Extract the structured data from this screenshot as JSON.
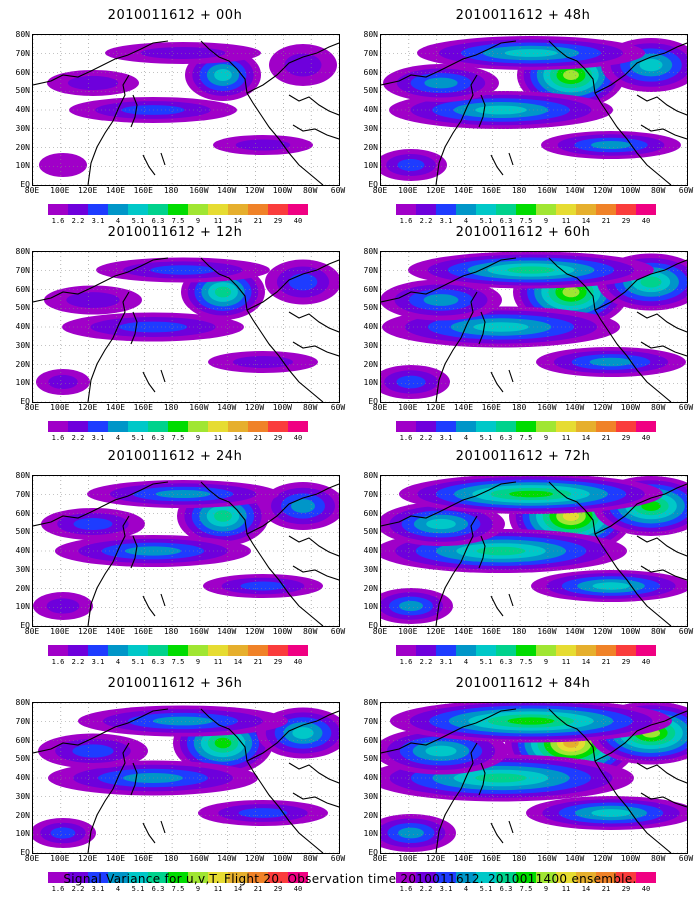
{
  "panels": [
    {
      "title": "2010011612 + 00h",
      "intensity": 1
    },
    {
      "title": "2010011612 + 48h",
      "intensity": 3
    },
    {
      "title": "2010011612 + 12h",
      "intensity": 1.5
    },
    {
      "title": "2010011612 + 60h",
      "intensity": 3.5
    },
    {
      "title": "2010011612 + 24h",
      "intensity": 2
    },
    {
      "title": "2010011612 + 72h",
      "intensity": 4
    },
    {
      "title": "2010011612 + 36h",
      "intensity": 2.5
    },
    {
      "title": "2010011612 + 84h",
      "intensity": 4.5
    }
  ],
  "lat_labels": [
    "80N",
    "70N",
    "60N",
    "50N",
    "40N",
    "30N",
    "20N",
    "10N",
    "EQ"
  ],
  "lon_labels": [
    "80E",
    "100E",
    "120E",
    "140E",
    "160E",
    "180",
    "160W",
    "140W",
    "120W",
    "100W",
    "80W",
    "60W"
  ],
  "colorbar": {
    "labels": [
      "1.6",
      "2.2",
      "3.1",
      "4",
      "5.1",
      "6.3",
      "7.5",
      "9",
      "11",
      "14",
      "21",
      "29",
      "40"
    ],
    "colors": [
      "#a000c8",
      "#6e00dc",
      "#1e3cff",
      "#0096c8",
      "#00c8c8",
      "#00d28c",
      "#00dc00",
      "#a0e632",
      "#e6dc32",
      "#e6af2d",
      "#f08228",
      "#fa3c3c",
      "#f00082"
    ]
  },
  "caption": "Signal Variance for u,v,T. Flight 20. Observation time 2010011612. 2010011400 ensemble."
}
